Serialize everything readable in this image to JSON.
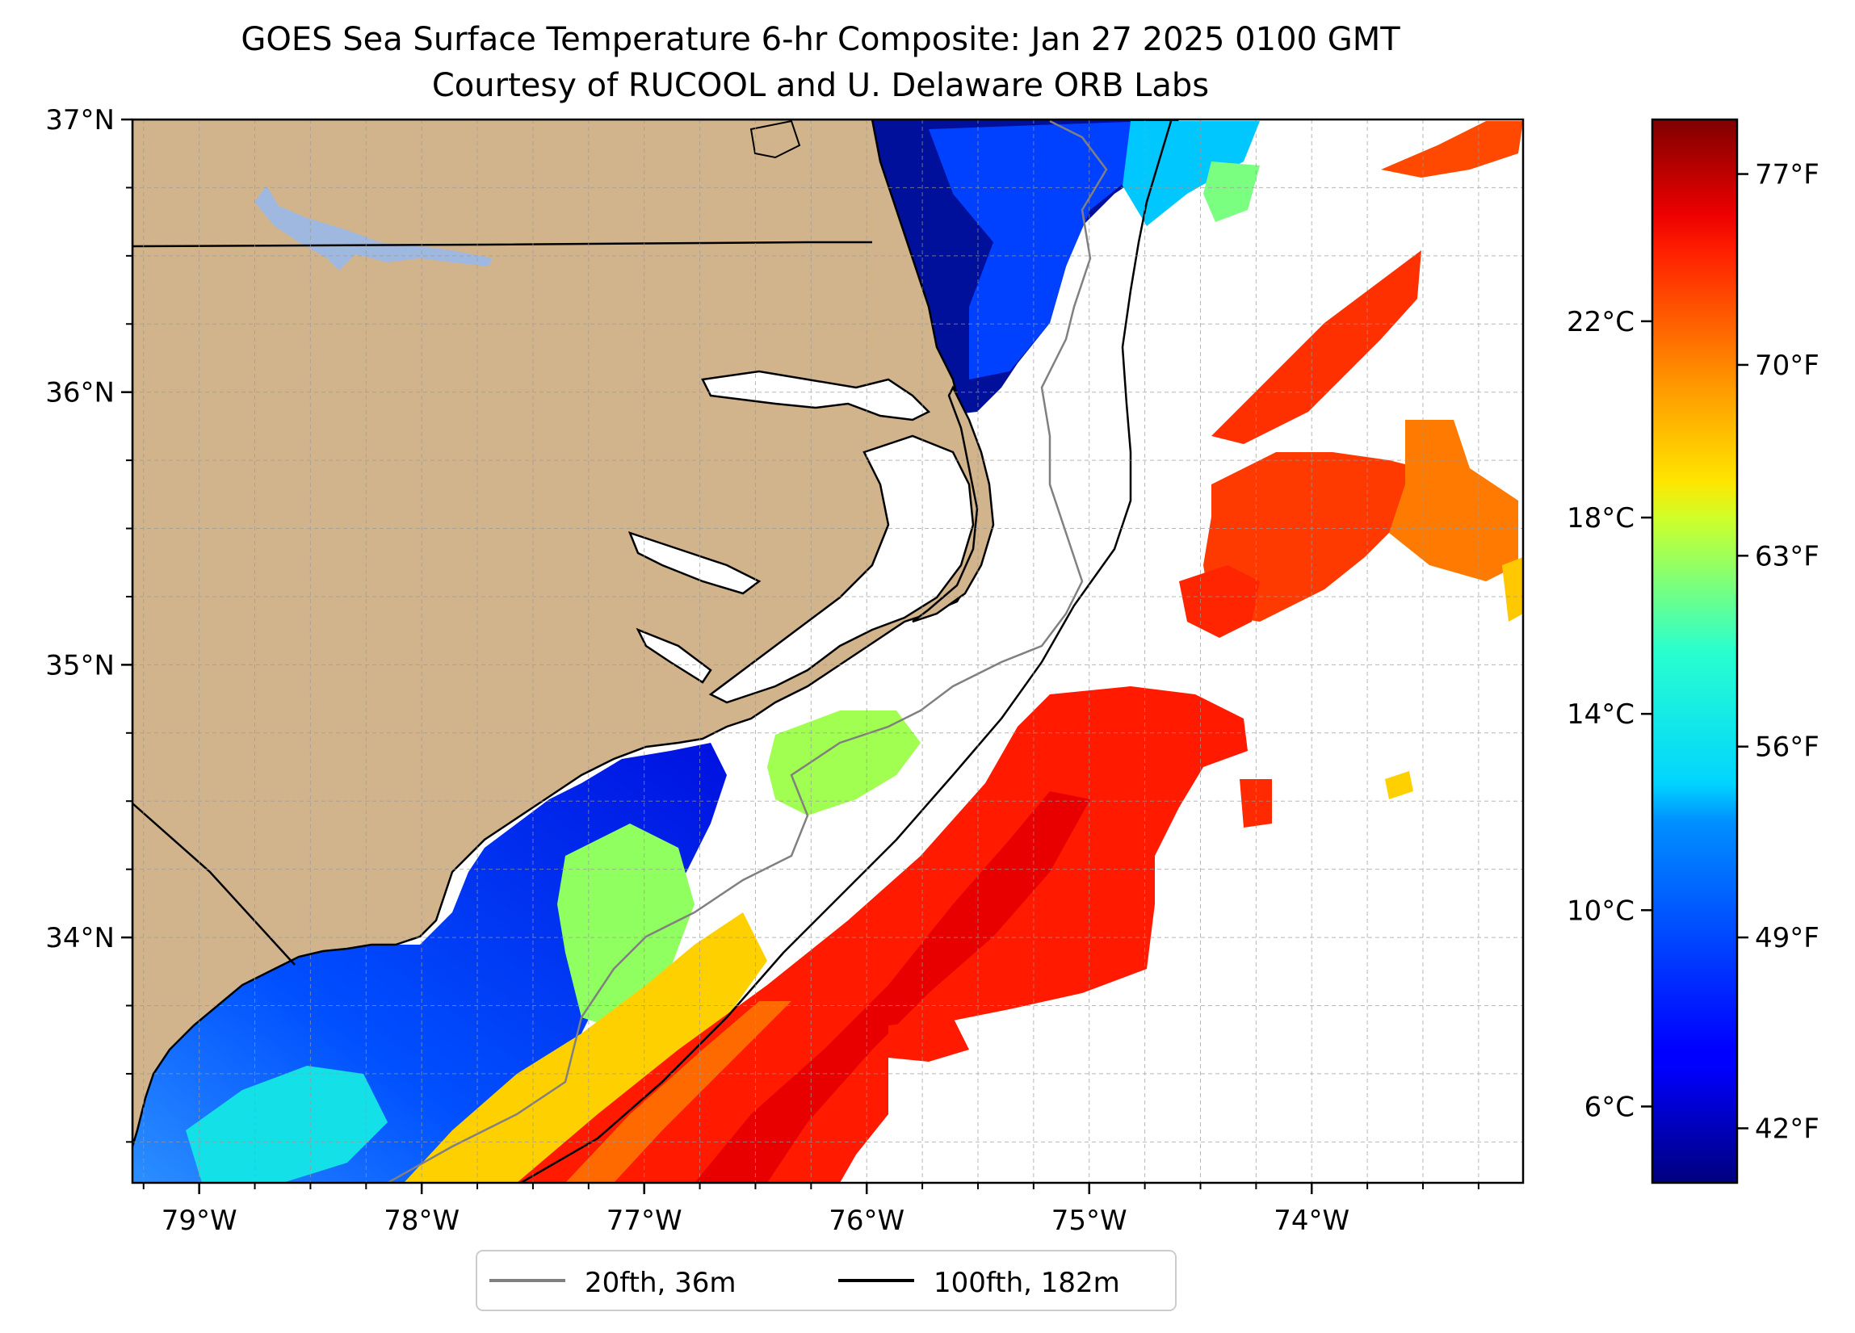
{
  "title": {
    "line1": "GOES Sea Surface Temperature 6-hr Composite: Jan 27 2025 0100 GMT",
    "line2": "Courtesy of RUCOOL and U. Delaware ORB Labs"
  },
  "map": {
    "lat_range": [
      33.1,
      37.0
    ],
    "lon_range": [
      -79.3,
      -73.05
    ],
    "lat_ticks": [
      {
        "value": 37,
        "label": "37°N"
      },
      {
        "value": 36,
        "label": "36°N"
      },
      {
        "value": 35,
        "label": "35°N"
      },
      {
        "value": 34,
        "label": "34°N"
      }
    ],
    "lon_ticks": [
      {
        "value": -79,
        "label": "79°W"
      },
      {
        "value": -78,
        "label": "78°W"
      },
      {
        "value": -77,
        "label": "77°W"
      },
      {
        "value": -76,
        "label": "76°W"
      },
      {
        "value": -75,
        "label": "75°W"
      },
      {
        "value": -74,
        "label": "74°W"
      }
    ],
    "grid": true,
    "land_color": "#d2b48c",
    "lake_color": "#9fb8e0"
  },
  "legend": {
    "placement": "bottom-center",
    "items": [
      {
        "label": "20fth, 36m",
        "color": "#808080"
      },
      {
        "label": "100fth, 182m",
        "color": "#000000"
      }
    ]
  },
  "colorbar": {
    "colormap": "jet",
    "range_f": [
      40,
      79
    ],
    "celsius_ticks": [
      {
        "value": 22,
        "label": "22°C"
      },
      {
        "value": 18,
        "label": "18°C"
      },
      {
        "value": 14,
        "label": "14°C"
      },
      {
        "value": 10,
        "label": "10°C"
      },
      {
        "value": 6,
        "label": "6°C"
      }
    ],
    "fahrenheit_ticks": [
      {
        "value": 77,
        "label": "77°F"
      },
      {
        "value": 70,
        "label": "70°F"
      },
      {
        "value": 63,
        "label": "63°F"
      },
      {
        "value": 56,
        "label": "56°F"
      },
      {
        "value": 49,
        "label": "49°F"
      },
      {
        "value": 42,
        "label": "42°F"
      }
    ]
  }
}
